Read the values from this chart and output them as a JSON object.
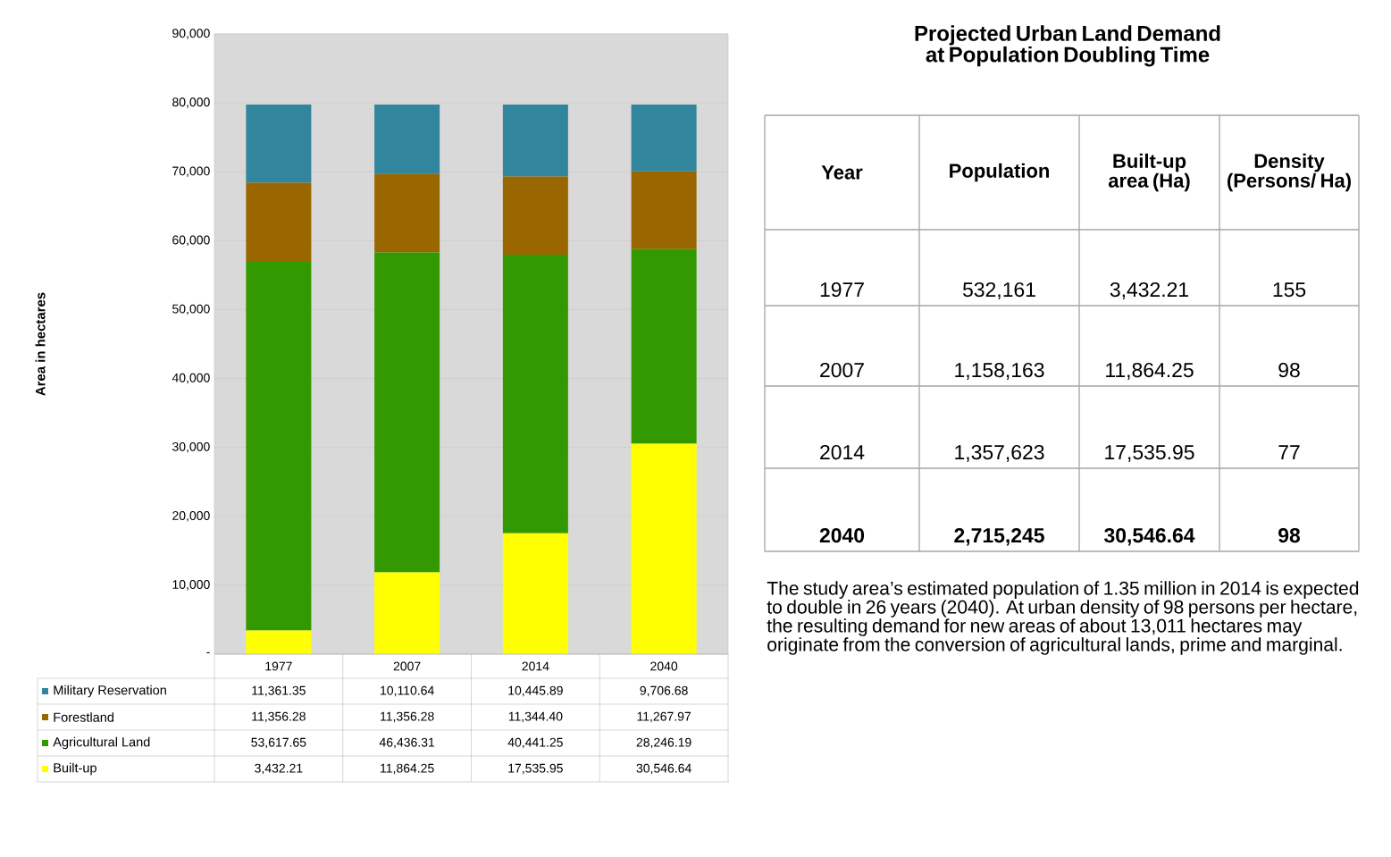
{
  "chart_data": [
    {
      "type": "bar",
      "stacked": true,
      "ylabel": "Area in hectares",
      "categories": [
        "1977",
        "2007",
        "2014",
        "2040"
      ],
      "ylim": [
        0,
        90000
      ],
      "yticks": [
        {
          "value": 0,
          "label": "-"
        },
        {
          "value": 10000,
          "label": "10,000"
        },
        {
          "value": 20000,
          "label": "20,000"
        },
        {
          "value": 30000,
          "label": "30,000"
        },
        {
          "value": 40000,
          "label": "40,000"
        },
        {
          "value": 50000,
          "label": "50,000"
        },
        {
          "value": 60000,
          "label": "60,000"
        },
        {
          "value": 70000,
          "label": "70,000"
        },
        {
          "value": 80000,
          "label": "80,000"
        },
        {
          "value": 90000,
          "label": "90,000"
        }
      ],
      "grid": "y",
      "legend": "bottom",
      "series": [
        {
          "name": "Built-up",
          "color": "#ffff00",
          "values": [
            3432.21,
            11864.25,
            17535.95,
            30546.64
          ],
          "value_labels": [
            "3,432.21",
            "11,864.25",
            "17,535.95",
            "30,546.64"
          ]
        },
        {
          "name": "Agricultural Land",
          "color": "#339900",
          "values": [
            53617.65,
            46436.31,
            40441.25,
            28246.19
          ],
          "value_labels": [
            "53,617.65",
            "46,436.31",
            "40,441.25",
            "28,246.19"
          ]
        },
        {
          "name": "Forestland",
          "color": "#996600",
          "values": [
            11356.28,
            11356.28,
            11344.4,
            11267.97
          ],
          "value_labels": [
            "11,356.28",
            "11,356.28",
            "11,344.40",
            "11,267.97"
          ]
        },
        {
          "name": "Military Reservation",
          "color": "#31859c",
          "values": [
            11361.35,
            10110.64,
            10445.89,
            9706.68
          ],
          "value_labels": [
            "11,361.35",
            "10,110.64",
            "10,445.89",
            "9,706.68"
          ]
        }
      ]
    },
    {
      "type": "other",
      "title": "Projected Urban Land Demand at Population Doubling Time",
      "annotations": [
        "Year",
        "Population",
        "Built-up area (Ha)",
        "Density (Persons/ Ha)",
        "1977",
        "532,161",
        "3,432.21",
        "155",
        "2007",
        "1,158,163",
        "11,864.25",
        "98",
        "2014",
        "1,357,623",
        "17,535.95",
        "77",
        "2040",
        "2,715,245",
        "30,546.64",
        "98",
        "The study area’s estimated population of 1.35 million in 2014 is expected to double in 26 years (2040). At urban density of 98 persons per hectare, the resulting demand for new areas of about 13,011 hectares may originate from the conversion of agricultural lands, prime and marginal."
      ]
    }
  ]
}
